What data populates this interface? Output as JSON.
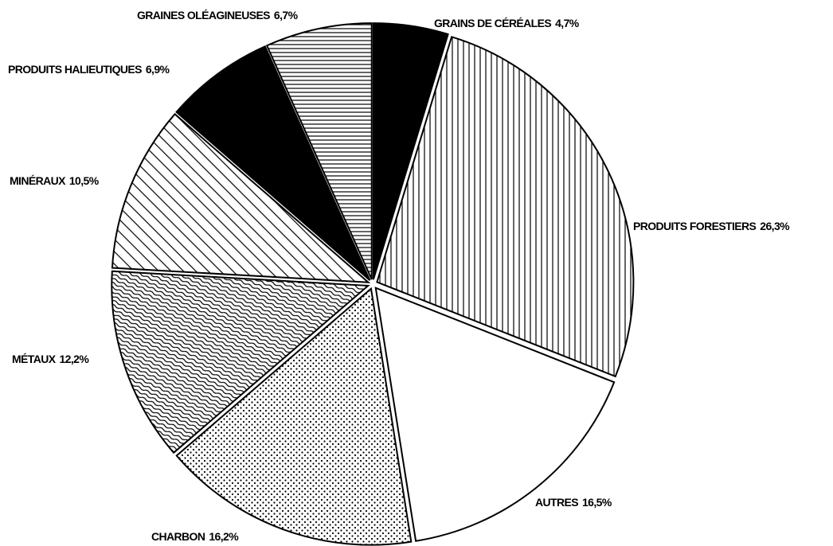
{
  "chart_data": {
    "type": "pie",
    "categories": [
      "GRAINS DE CÉRÉALES",
      "PRODUITS FORESTIERS",
      "AUTRES",
      "CHARBON",
      "MÉTAUX",
      "MINÉRAUX",
      "PRODUITS HALIEUTIQUES",
      "GRAINES OLÉAGINEUSES"
    ],
    "values": [
      4.7,
      26.3,
      16.5,
      16.2,
      12.2,
      10.5,
      6.9,
      6.7
    ],
    "value_labels": [
      "4,7%",
      "26,3%",
      "16,5%",
      "16,2%",
      "12,2%",
      "10,5%",
      "6,9%",
      "6,7%"
    ]
  }
}
